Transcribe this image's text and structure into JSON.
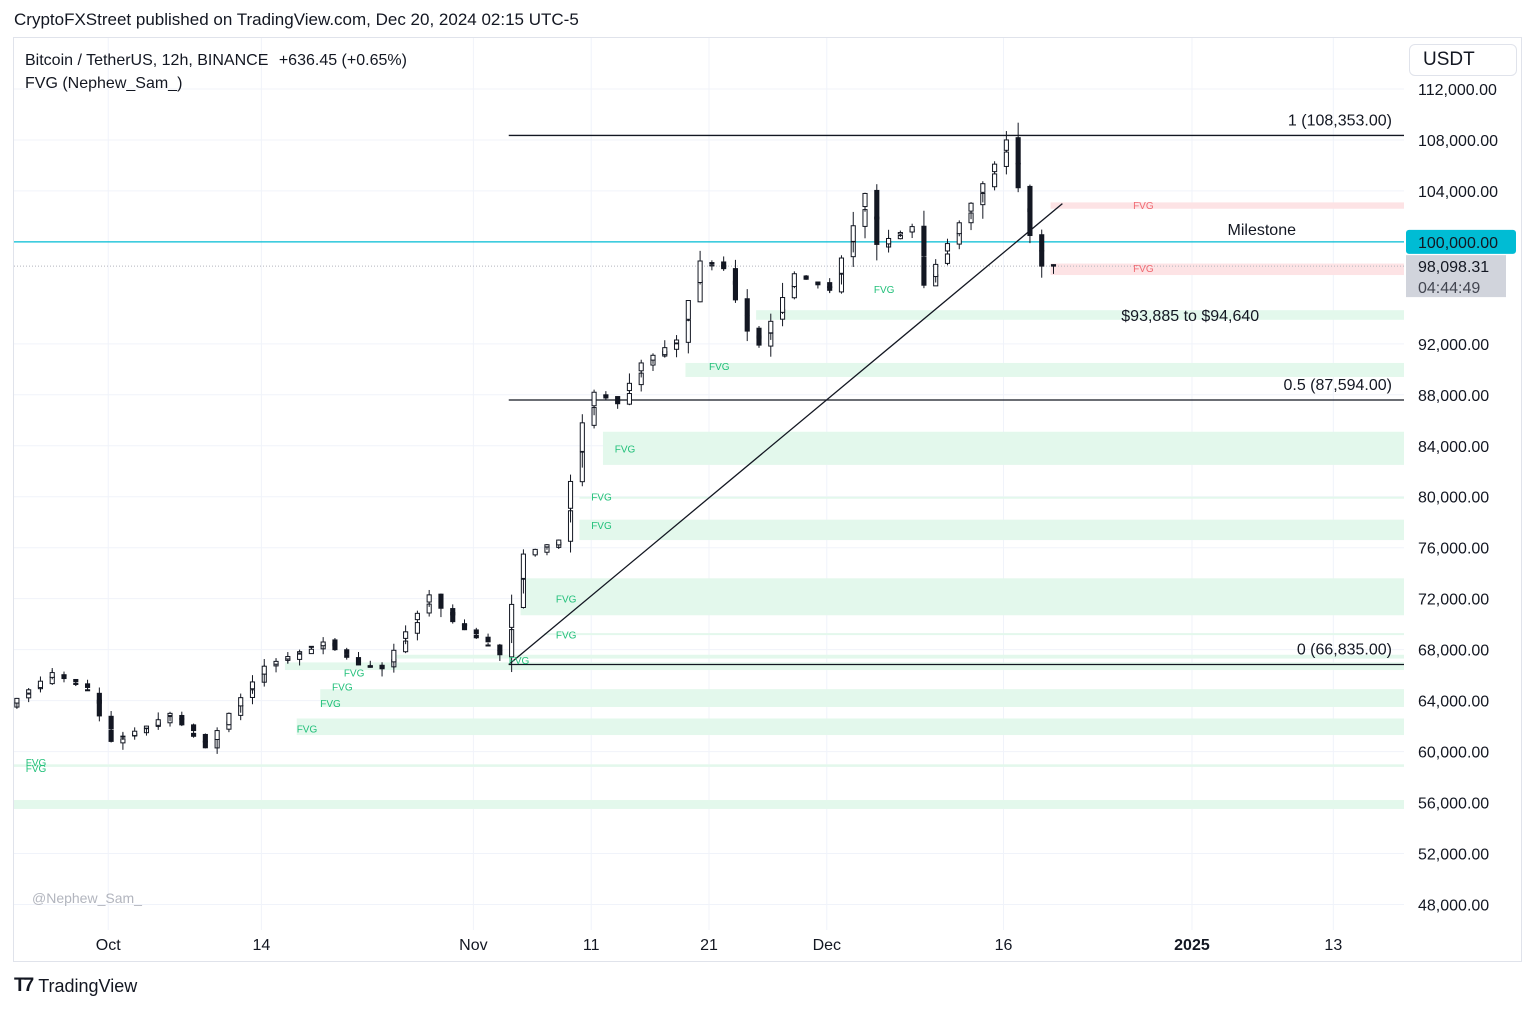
{
  "header": {
    "publisher": "CryptoFXStreet published on TradingView.com, Dec 20, 2024 02:15 UTC-5",
    "symbol": "Bitcoin / TetherUS, 12h, BINANCE",
    "change": "+636.45 (+0.65%)",
    "indicator": "FVG (Nephew_Sam_)",
    "currency": "USDT"
  },
  "watermark": "@Nephew_Sam_",
  "footer": {
    "brand": "TradingView"
  },
  "colors": {
    "green_zone": "#e3f8ec",
    "red_zone": "#fde3e5",
    "fvg_green_label": "#22c07a",
    "fvg_red_label": "#f06a72",
    "milestone_line": "#00bcd4",
    "price_tag": "#d1d4dc"
  },
  "chart_data": {
    "type": "candlestick",
    "interval": "12h",
    "x_range": [
      "2024-09-23",
      "2025-01-19"
    ],
    "ylim": [
      46000,
      116000
    ],
    "y_ticks": [
      {
        "value": 48000,
        "label": "48,000.00"
      },
      {
        "value": 52000,
        "label": "52,000.00"
      },
      {
        "value": 56000,
        "label": "56,000.00"
      },
      {
        "value": 60000,
        "label": "60,000.00"
      },
      {
        "value": 64000,
        "label": "64,000.00"
      },
      {
        "value": 68000,
        "label": "68,000.00"
      },
      {
        "value": 72000,
        "label": "72,000.00"
      },
      {
        "value": 76000,
        "label": "76,000.00"
      },
      {
        "value": 80000,
        "label": "80,000.00"
      },
      {
        "value": 84000,
        "label": "84,000.00"
      },
      {
        "value": 88000,
        "label": "88,000.00"
      },
      {
        "value": 92000,
        "label": "92,000.00"
      },
      {
        "value": 104000,
        "label": "104,000.00"
      },
      {
        "value": 108000,
        "label": "108,000.00"
      },
      {
        "value": 112000,
        "label": "112,000.00"
      }
    ],
    "x_ticks": [
      {
        "date": "2024-10-01",
        "label": "Oct",
        "bold": false
      },
      {
        "date": "2024-10-14",
        "label": "14",
        "bold": false
      },
      {
        "date": "2024-11-01",
        "label": "Nov",
        "bold": false
      },
      {
        "date": "2024-11-11",
        "label": "11",
        "bold": false
      },
      {
        "date": "2024-11-21",
        "label": "21",
        "bold": false
      },
      {
        "date": "2024-12-01",
        "label": "Dec",
        "bold": false
      },
      {
        "date": "2024-12-16",
        "label": "16",
        "bold": false
      },
      {
        "date": "2025-01-01",
        "label": "2025",
        "bold": true
      },
      {
        "date": "2025-01-13",
        "label": "13",
        "bold": false
      }
    ],
    "price_path": [
      {
        "date": "2024-09-23",
        "price": 63500
      },
      {
        "date": "2024-09-27",
        "price": 66200
      },
      {
        "date": "2024-09-30",
        "price": 64800
      },
      {
        "date": "2024-10-02",
        "price": 60800
      },
      {
        "date": "2024-10-05",
        "price": 62000
      },
      {
        "date": "2024-10-07",
        "price": 63000
      },
      {
        "date": "2024-10-10",
        "price": 60300
      },
      {
        "date": "2024-10-12",
        "price": 63000
      },
      {
        "date": "2024-10-15",
        "price": 66700
      },
      {
        "date": "2024-10-20",
        "price": 68600
      },
      {
        "date": "2024-10-23",
        "price": 66800
      },
      {
        "date": "2024-10-25",
        "price": 66500
      },
      {
        "date": "2024-10-29",
        "price": 72300
      },
      {
        "date": "2024-10-31",
        "price": 70200
      },
      {
        "date": "2024-11-03",
        "price": 68300
      },
      {
        "date": "2024-11-04",
        "price": 67600
      },
      {
        "date": "2024-11-06",
        "price": 75500
      },
      {
        "date": "2024-11-09",
        "price": 76600
      },
      {
        "date": "2024-11-11",
        "price": 85800
      },
      {
        "date": "2024-11-12",
        "price": 88200
      },
      {
        "date": "2024-11-14",
        "price": 87300
      },
      {
        "date": "2024-11-16",
        "price": 90500
      },
      {
        "date": "2024-11-19",
        "price": 92300
      },
      {
        "date": "2024-11-21",
        "price": 98500
      },
      {
        "date": "2024-11-23",
        "price": 97900
      },
      {
        "date": "2024-11-25",
        "price": 93000
      },
      {
        "date": "2024-11-26",
        "price": 91900
      },
      {
        "date": "2024-11-29",
        "price": 97500
      },
      {
        "date": "2024-12-02",
        "price": 96200
      },
      {
        "date": "2024-12-05",
        "price": 103800
      },
      {
        "date": "2024-12-06",
        "price": 99800
      },
      {
        "date": "2024-12-09",
        "price": 101200
      },
      {
        "date": "2024-12-10",
        "price": 96600
      },
      {
        "date": "2024-12-13",
        "price": 101500
      },
      {
        "date": "2024-12-16",
        "price": 106100
      },
      {
        "date": "2024-12-17",
        "price": 108000
      },
      {
        "date": "2024-12-19",
        "price": 100500
      },
      {
        "date": "2024-12-20",
        "price": 98098
      }
    ],
    "fibonacci": [
      {
        "level": "1",
        "price": 108353,
        "label": "1 (108,353.00)"
      },
      {
        "level": "0.5",
        "price": 87594,
        "label": "0.5 (87,594.00)"
      },
      {
        "level": "0",
        "price": 66835,
        "label": "0 (66,835.00)"
      }
    ],
    "fib_start_date": "2024-11-04",
    "trendline": {
      "from": {
        "date": "2024-11-04",
        "price": 66835
      },
      "to": {
        "date": "2024-12-21",
        "price": 103000
      }
    },
    "milestone": {
      "price": 100000,
      "label": "Milestone",
      "tag": "100,000.00"
    },
    "current_price": {
      "price": 98098.31,
      "label": "98,098.31",
      "countdown": "04:44:49"
    },
    "annotation": {
      "text": "$93,885 to $94,640",
      "price": 94263,
      "date": "2024-12-26"
    },
    "fvg_zones": [
      {
        "kind": "bullish",
        "start": "2024-11-25",
        "low": 93885,
        "high": 94640
      },
      {
        "kind": "bullish",
        "start": "2024-11-19",
        "low": 89400,
        "high": 90500
      },
      {
        "kind": "bullish",
        "start": "2024-11-12",
        "low": 82500,
        "high": 85100
      },
      {
        "kind": "bullish",
        "start": "2024-11-10",
        "low": 80000,
        "high": 80000
      },
      {
        "kind": "bullish",
        "start": "2024-11-10",
        "low": 76600,
        "high": 78200
      },
      {
        "kind": "bullish",
        "start": "2024-11-05",
        "low": 70700,
        "high": 73600
      },
      {
        "kind": "bullish",
        "start": "2024-11-07",
        "low": 69200,
        "high": 69300
      },
      {
        "kind": "bullish",
        "start": "2024-10-25",
        "low": 67300,
        "high": 67600
      },
      {
        "kind": "bullish",
        "start": "2024-10-16",
        "low": 66400,
        "high": 67000
      },
      {
        "kind": "bullish",
        "start": "2024-10-19",
        "low": 63500,
        "high": 64900
      },
      {
        "kind": "bullish",
        "start": "2024-10-17",
        "low": 61300,
        "high": 62600
      },
      {
        "kind": "bullish",
        "start": "2024-09-23",
        "low": 58800,
        "high": 59000
      },
      {
        "kind": "bullish",
        "start": "2024-09-23",
        "low": 55500,
        "high": 56200
      },
      {
        "kind": "bearish",
        "start": "2024-12-20",
        "low": 102600,
        "high": 103100
      },
      {
        "kind": "bearish",
        "start": "2024-12-20",
        "low": 97400,
        "high": 98300
      }
    ],
    "fvg_labels": [
      {
        "text": "FVG",
        "kind": "bullish",
        "date": "2024-12-05",
        "price": 96300
      },
      {
        "text": "FVG",
        "kind": "bullish",
        "date": "2024-11-21",
        "price": 90250
      },
      {
        "text": "FVG",
        "kind": "bullish",
        "date": "2024-11-13",
        "price": 83800
      },
      {
        "text": "FVG",
        "kind": "bullish",
        "date": "2024-11-11",
        "price": 80000
      },
      {
        "text": "FVG",
        "kind": "bullish",
        "date": "2024-11-11",
        "price": 77800
      },
      {
        "text": "FVG",
        "kind": "bullish",
        "date": "2024-11-08",
        "price": 72000
      },
      {
        "text": "FVG",
        "kind": "bullish",
        "date": "2024-11-08",
        "price": 69200
      },
      {
        "text": "FVG",
        "kind": "bullish",
        "date": "2024-11-04",
        "price": 67200
      },
      {
        "text": "FVG",
        "kind": "bullish",
        "date": "2024-10-21",
        "price": 66200
      },
      {
        "text": "FVG",
        "kind": "bullish",
        "date": "2024-10-20",
        "price": 65100
      },
      {
        "text": "FVG",
        "kind": "bullish",
        "date": "2024-10-19",
        "price": 63800
      },
      {
        "text": "FVG",
        "kind": "bullish",
        "date": "2024-10-17",
        "price": 61800
      },
      {
        "text": "FVG",
        "kind": "bullish",
        "date": "2024-09-24",
        "price": 59200
      },
      {
        "text": "FVG",
        "kind": "bullish",
        "date": "2024-09-24",
        "price": 58700
      },
      {
        "text": "FVG",
        "kind": "bearish",
        "date": "2024-12-27",
        "price": 102900
      },
      {
        "text": "FVG",
        "kind": "bearish",
        "date": "2024-12-27",
        "price": 97950
      }
    ]
  }
}
